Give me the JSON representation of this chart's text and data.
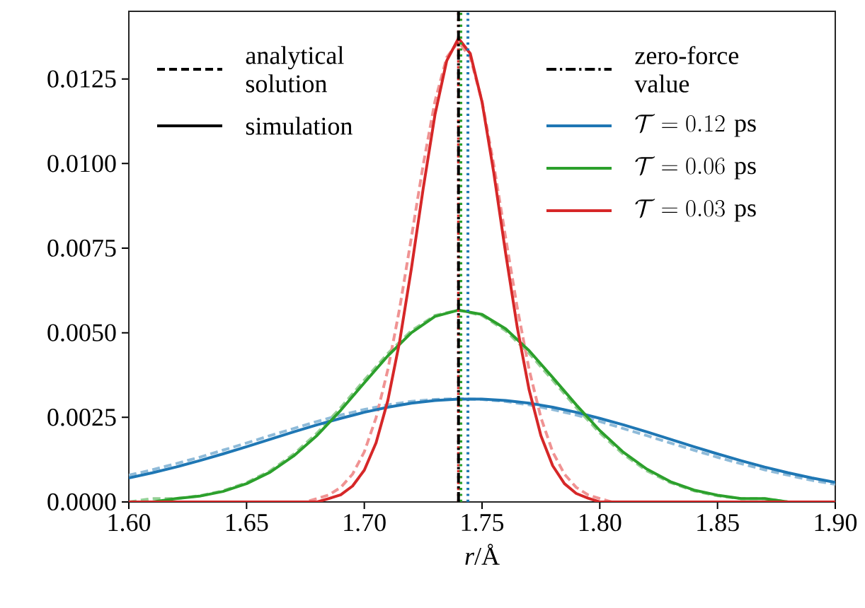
{
  "chart_data": {
    "type": "line",
    "xlabel": "*r*/Å",
    "x": [
      1.6,
      1.61,
      1.62,
      1.63,
      1.64,
      1.65,
      1.66,
      1.67,
      1.68,
      1.69,
      1.7,
      1.71,
      1.72,
      1.73,
      1.74,
      1.75,
      1.76,
      1.77,
      1.78,
      1.79,
      1.8,
      1.81,
      1.82,
      1.83,
      1.84,
      1.85,
      1.86,
      1.87,
      1.88,
      1.89,
      1.9
    ],
    "series": [
      {
        "name": "analytical solution",
        "color": "#000000",
        "line_style": "dashed",
        "values": [
          null,
          null,
          null,
          null,
          null,
          null,
          null,
          null,
          null,
          null,
          null,
          null,
          null,
          null,
          null,
          null,
          null,
          null,
          null,
          null,
          null,
          null,
          null,
          null,
          null,
          null,
          null,
          null,
          null,
          null,
          null
        ]
      },
      {
        "name": "simulation",
        "color": "#000000",
        "line_style": "solid",
        "values": [
          null,
          null,
          null,
          null,
          null,
          null,
          null,
          null,
          null,
          null,
          null,
          null,
          null,
          null,
          null,
          null,
          null,
          null,
          null,
          null,
          null,
          null,
          null,
          null,
          null,
          null,
          null,
          null,
          null,
          null,
          null
        ]
      },
      {
        "name": "zero-force value",
        "color": "#000000",
        "line_style": "dashdot",
        "values": [
          null,
          null,
          null,
          null,
          null,
          null,
          null,
          null,
          null,
          null,
          null,
          null,
          null,
          null,
          null,
          null,
          null,
          null,
          null,
          null,
          null,
          null,
          null,
          null,
          null,
          null,
          null,
          null,
          null,
          null,
          null
        ]
      },
      {
        "color": "#8fbbd9",
        "line_style": "dashed",
        "values": [
          0.00079,
          0.00095,
          0.00113,
          0.00132,
          0.00153,
          0.00174,
          0.00196,
          0.00217,
          0.00238,
          0.00257,
          0.00273,
          0.00287,
          0.00297,
          0.00303,
          0.00305,
          0.00303,
          0.00297,
          0.00287,
          0.00273,
          0.00257,
          0.00238,
          0.00217,
          0.00196,
          0.00174,
          0.00153,
          0.00132,
          0.00113,
          0.00095,
          0.00079,
          0.00064,
          0.00052
        ]
      },
      {
        "color": "#95cf95",
        "line_style": "dashed",
        "values": [
          0,
          0.0001,
          0.0001,
          0.00018,
          0.00033,
          0.00057,
          0.00092,
          0.00141,
          0.00204,
          0.00279,
          0.0036,
          0.00439,
          0.00506,
          0.00551,
          0.00567,
          0.00551,
          0.00506,
          0.00439,
          0.0036,
          0.00279,
          0.00204,
          0.00141,
          0.00092,
          0.00057,
          0.00033,
          0.00018,
          0.0001,
          0.0001,
          0,
          0,
          0
        ]
      },
      {
        "color": "#f09393",
        "line_style": "dashed",
        "x": [
          1.6,
          1.665,
          1.67,
          1.675,
          1.68,
          1.685,
          1.69,
          1.695,
          1.7,
          1.705,
          1.71,
          1.715,
          1.72,
          1.725,
          1.73,
          1.735,
          1.74,
          1.745,
          1.75,
          1.755,
          1.76,
          1.765,
          1.77,
          1.775,
          1.78,
          1.785,
          1.79,
          1.795,
          1.8,
          1.805,
          1.81,
          1.815,
          1.9
        ],
        "values": [
          0,
          0,
          0,
          0,
          0.0001,
          0.00021,
          0.00043,
          0.00082,
          0.00148,
          0.00249,
          0.00391,
          0.00572,
          0.00782,
          0.00996,
          0.01184,
          0.01314,
          0.0136,
          0.01314,
          0.01184,
          0.00996,
          0.00782,
          0.00572,
          0.00391,
          0.00249,
          0.00148,
          0.00082,
          0.00043,
          0.00021,
          0.0001,
          0,
          0,
          0,
          0
        ]
      },
      {
        "name": "\\mathcal{T} = 0.12\\ \\mathrm{ps}",
        "color": "#1f77b4",
        "line_style": "solid",
        "values": [
          0.00071,
          0.00086,
          0.00103,
          0.00122,
          0.00142,
          0.00163,
          0.00185,
          0.00207,
          0.00228,
          0.00247,
          0.00265,
          0.0028,
          0.00292,
          0.003,
          0.00304,
          0.00304,
          0.003,
          0.00292,
          0.0028,
          0.00265,
          0.00247,
          0.00228,
          0.00207,
          0.00185,
          0.00163,
          0.00142,
          0.00122,
          0.00103,
          0.00086,
          0.00071,
          0.00058
        ]
      },
      {
        "name": "\\mathcal{T} = 0.06\\ \\mathrm{ps}",
        "color": "#2ca02c",
        "line_style": "solid",
        "values": [
          0,
          0,
          0.0001,
          0.00017,
          0.00031,
          0.00054,
          0.00088,
          0.00136,
          0.00197,
          0.00271,
          0.00352,
          0.00432,
          0.005,
          0.00548,
          0.00567,
          0.00554,
          0.00512,
          0.00447,
          0.00368,
          0.00287,
          0.00211,
          0.00147,
          0.00097,
          0.0006,
          0.00035,
          0.0002,
          0.0001,
          0.0001,
          0,
          0,
          0
        ]
      },
      {
        "name": "\\mathcal{T} = 0.03\\ \\mathrm{ps}",
        "color": "#d62728",
        "line_style": "solid",
        "x": [
          1.6,
          1.65,
          1.675,
          1.68,
          1.685,
          1.69,
          1.695,
          1.7,
          1.705,
          1.71,
          1.715,
          1.72,
          1.725,
          1.73,
          1.735,
          1.74,
          1.745,
          1.75,
          1.755,
          1.76,
          1.765,
          1.77,
          1.775,
          1.78,
          1.785,
          1.79,
          1.795,
          1.8,
          1.81,
          1.83,
          1.9
        ],
        "values": [
          0,
          0,
          0,
          0,
          0.0001,
          0.00021,
          0.00047,
          0.00094,
          0.00175,
          0.003,
          0.00474,
          0.0069,
          0.00926,
          0.01144,
          0.01304,
          0.0137,
          0.01325,
          0.01182,
          0.00972,
          0.00736,
          0.00514,
          0.00331,
          0.00196,
          0.00107,
          0.00054,
          0.00025,
          0.00011,
          0,
          0,
          0,
          0
        ]
      }
    ],
    "ref_lines": [
      {
        "axis": "x",
        "value": 1.74,
        "color": "#d62728",
        "line_style": "dotted"
      },
      {
        "axis": "x",
        "value": 1.741,
        "color": "#2ca02c",
        "line_style": "dotted"
      },
      {
        "axis": "x",
        "value": 1.744,
        "color": "#1f77b4",
        "line_style": "dotted"
      },
      {
        "axis": "x",
        "value": 1.74,
        "color": "#000000",
        "line_style": "dashdot"
      }
    ],
    "xlim": [
      1.6,
      1.9
    ],
    "ylim": [
      0,
      0.0145
    ],
    "xticks": [
      {
        "value": 1.6,
        "label": "1.60"
      },
      1.65,
      {
        "value": 1.7,
        "label": "1.70"
      },
      1.75,
      {
        "value": 1.8,
        "label": "1.80"
      },
      1.85,
      {
        "value": 1.9,
        "label": "1.90"
      }
    ],
    "yticks": [
      {
        "value": 0,
        "label": "0.0000"
      },
      0.0025,
      {
        "value": 0.005,
        "label": "0.0050"
      },
      0.0075,
      {
        "value": 0.01,
        "label": "0.0100"
      },
      0.0125
    ],
    "grid": false,
    "legend": "top",
    "marker": "none"
  }
}
